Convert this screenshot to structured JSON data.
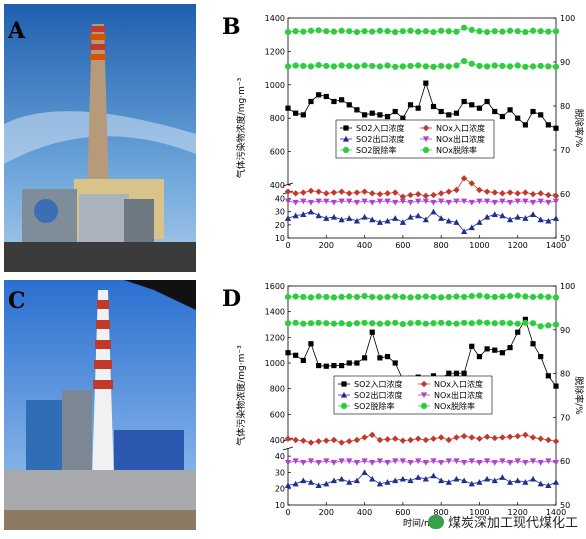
{
  "panels": {
    "A": {
      "letter": "A"
    },
    "B": {
      "letter": "B"
    },
    "C": {
      "letter": "C"
    },
    "D": {
      "letter": "D"
    }
  },
  "colors": {
    "so2_in": "#000000",
    "nox_in": "#c0392b",
    "so2_out": "#1f2f8f",
    "nox_out": "#b040d0",
    "so2_rate": "#2ecc40",
    "nox_rate": "#2ecc40"
  },
  "watermark": "煤炭深加工现代煤化工",
  "chart_data": [
    {
      "panel": "B",
      "type": "scatter",
      "ylabel": "气体污染物浓度/mg·m⁻³",
      "y2label": "脱除率/%",
      "xlabel": "",
      "xlim": [
        0,
        1400
      ],
      "x_ticks": [
        "0",
        "200",
        "400",
        "600",
        "800",
        "1000",
        "1200",
        "1400"
      ],
      "y_upper_ticks": [
        "400",
        "600",
        "800",
        "1000",
        "1200",
        "1400"
      ],
      "y_lower_ticks": [
        "10",
        "20",
        "30",
        "40"
      ],
      "y2_ticks": [
        "50",
        "60",
        "70",
        "80",
        "90",
        "100"
      ],
      "ylim_upper": [
        400,
        1400
      ],
      "ylim_lower": [
        10,
        45
      ],
      "y2lim": [
        50,
        100
      ],
      "legend": [
        "SO2入口浓度",
        "NOx入口浓度",
        "SO2出口浓度",
        "NOx出口浓度",
        "SO2脱除率",
        "NOx脱除率"
      ],
      "series": [
        {
          "name": "SO2入口浓度",
          "axis": "left",
          "marker": "square",
          "x": [
            0,
            40,
            80,
            120,
            160,
            200,
            240,
            280,
            320,
            360,
            400,
            440,
            480,
            520,
            560,
            600,
            640,
            680,
            720,
            760,
            800,
            840,
            880,
            920,
            960,
            1000,
            1040,
            1080,
            1120,
            1160,
            1200,
            1240,
            1280,
            1320,
            1360,
            1400
          ],
          "y": [
            860,
            830,
            820,
            900,
            940,
            930,
            900,
            910,
            880,
            850,
            820,
            830,
            820,
            810,
            840,
            800,
            880,
            860,
            1010,
            870,
            840,
            820,
            830,
            900,
            880,
            860,
            900,
            840,
            810,
            850,
            800,
            760,
            840,
            820,
            760,
            740
          ]
        },
        {
          "name": "NOx入口浓度",
          "axis": "left",
          "marker": "diamond",
          "x": [
            0,
            40,
            80,
            120,
            160,
            200,
            240,
            280,
            320,
            360,
            400,
            440,
            480,
            520,
            560,
            600,
            640,
            680,
            720,
            760,
            800,
            840,
            880,
            920,
            960,
            1000,
            1040,
            1080,
            1120,
            1160,
            1200,
            1240,
            1280,
            1320,
            1360,
            1400
          ],
          "y": [
            360,
            350,
            355,
            365,
            360,
            350,
            355,
            360,
            350,
            355,
            360,
            350,
            345,
            350,
            355,
            330,
            340,
            345,
            335,
            340,
            350,
            360,
            370,
            440,
            410,
            370,
            360,
            355,
            350,
            355,
            350,
            355,
            345,
            350,
            340,
            335
          ]
        },
        {
          "name": "SO2出口浓度",
          "axis": "lower",
          "marker": "triangle-up",
          "x": [
            0,
            40,
            80,
            120,
            160,
            200,
            240,
            280,
            320,
            360,
            400,
            440,
            480,
            520,
            560,
            600,
            640,
            680,
            720,
            760,
            800,
            840,
            880,
            920,
            960,
            1000,
            1040,
            1080,
            1120,
            1160,
            1200,
            1240,
            1280,
            1320,
            1360,
            1400
          ],
          "y": [
            25,
            27,
            28,
            30,
            27,
            25,
            26,
            24,
            25,
            23,
            26,
            24,
            22,
            23,
            25,
            22,
            26,
            27,
            24,
            30,
            25,
            23,
            22,
            15,
            18,
            22,
            26,
            28,
            27,
            24,
            26,
            25,
            28,
            24,
            23,
            25
          ]
        },
        {
          "name": "NOx出口浓度",
          "axis": "lower",
          "marker": "triangle-down",
          "x": [
            0,
            40,
            80,
            120,
            160,
            200,
            240,
            280,
            320,
            360,
            400,
            440,
            480,
            520,
            560,
            600,
            640,
            680,
            720,
            760,
            800,
            840,
            880,
            920,
            960,
            1000,
            1040,
            1080,
            1120,
            1160,
            1200,
            1240,
            1280,
            1320,
            1360,
            1400
          ],
          "y": [
            38,
            37,
            38,
            37,
            38,
            38,
            37,
            38,
            38,
            37,
            38,
            37,
            38,
            38,
            37,
            38,
            37,
            38,
            38,
            37,
            38,
            37,
            38,
            38,
            37,
            38,
            38,
            37,
            38,
            37,
            38,
            38,
            37,
            38,
            37,
            38
          ]
        },
        {
          "name": "SO2脱除率",
          "axis": "right",
          "marker": "circle",
          "x": [
            0,
            40,
            80,
            120,
            160,
            200,
            240,
            280,
            320,
            360,
            400,
            440,
            480,
            520,
            560,
            600,
            640,
            680,
            720,
            760,
            800,
            840,
            880,
            920,
            960,
            1000,
            1040,
            1080,
            1120,
            1160,
            1200,
            1240,
            1280,
            1320,
            1360,
            1400
          ],
          "y": [
            96.8,
            97.0,
            96.9,
            97.1,
            97.2,
            97.0,
            96.9,
            97.1,
            97.0,
            96.8,
            97.0,
            96.9,
            97.1,
            97.0,
            96.8,
            97.0,
            97.1,
            96.9,
            97.0,
            96.8,
            97.1,
            97.0,
            96.9,
            97.8,
            97.3,
            97.0,
            96.8,
            97.0,
            96.9,
            97.1,
            97.0,
            96.8,
            97.1,
            97.0,
            96.9,
            97.0
          ]
        },
        {
          "name": "NOx脱除率",
          "axis": "right",
          "marker": "circle",
          "x": [
            0,
            40,
            80,
            120,
            160,
            200,
            240,
            280,
            320,
            360,
            400,
            440,
            480,
            520,
            560,
            600,
            640,
            680,
            720,
            760,
            800,
            840,
            880,
            920,
            960,
            1000,
            1040,
            1080,
            1120,
            1160,
            1200,
            1240,
            1280,
            1320,
            1360,
            1400
          ],
          "y": [
            89.0,
            89.2,
            89.1,
            89.0,
            89.3,
            89.1,
            89.0,
            89.2,
            89.1,
            89.0,
            89.2,
            89.1,
            89.0,
            89.2,
            88.9,
            89.0,
            89.1,
            89.2,
            89.0,
            88.9,
            89.1,
            89.0,
            89.2,
            90.2,
            89.6,
            89.1,
            89.0,
            89.2,
            89.1,
            89.0,
            89.2,
            88.9,
            89.0,
            89.1,
            89.0,
            88.9
          ]
        }
      ]
    },
    {
      "panel": "D",
      "type": "scatter",
      "ylabel": "气体污染物浓度/mg·m⁻³",
      "y2label": "脱除率/%",
      "xlabel": "时间/min",
      "xlim": [
        0,
        1400
      ],
      "x_ticks": [
        "0",
        "200",
        "400",
        "600",
        "800",
        "1000",
        "1200",
        "1400"
      ],
      "y_upper_ticks": [
        "400",
        "600",
        "800",
        "1000",
        "1200",
        "1400",
        "1600"
      ],
      "y_lower_ticks": [
        "10",
        "20",
        "30",
        "40"
      ],
      "y2_ticks": [
        "50",
        "60",
        "70",
        "80",
        "90",
        "100"
      ],
      "ylim_upper": [
        400,
        1600
      ],
      "ylim_lower": [
        10,
        45
      ],
      "y2lim": [
        50,
        100
      ],
      "legend": [
        "SO2入口浓度",
        "NOx入口浓度",
        "SO2出口浓度",
        "NOx出口浓度",
        "SO2脱除率",
        "NOx脱除率"
      ],
      "series": [
        {
          "name": "SO2入口浓度",
          "axis": "left",
          "marker": "square",
          "x": [
            0,
            40,
            80,
            120,
            160,
            200,
            240,
            280,
            320,
            360,
            400,
            440,
            480,
            520,
            560,
            600,
            640,
            680,
            720,
            760,
            800,
            840,
            880,
            920,
            960,
            1000,
            1040,
            1080,
            1120,
            1160,
            1200,
            1240,
            1280,
            1320,
            1360,
            1400
          ],
          "y": [
            1080,
            1060,
            1020,
            1150,
            980,
            975,
            980,
            980,
            1000,
            1000,
            1040,
            1240,
            1040,
            1050,
            1000,
            870,
            880,
            890,
            880,
            900,
            880,
            920,
            920,
            920,
            1130,
            1050,
            1110,
            1100,
            1080,
            1120,
            1240,
            1340,
            1150,
            1050,
            900,
            820
          ]
        },
        {
          "name": "NOx入口浓度",
          "axis": "left",
          "marker": "diamond",
          "x": [
            0,
            40,
            80,
            120,
            160,
            200,
            240,
            280,
            320,
            360,
            400,
            440,
            480,
            520,
            560,
            600,
            640,
            680,
            720,
            760,
            800,
            840,
            880,
            920,
            960,
            1000,
            1040,
            1080,
            1120,
            1160,
            1200,
            1240,
            1280,
            1320,
            1360,
            1400
          ],
          "y": [
            410,
            400,
            395,
            380,
            390,
            395,
            400,
            380,
            390,
            400,
            420,
            440,
            400,
            405,
            410,
            395,
            400,
            410,
            400,
            410,
            420,
            400,
            420,
            430,
            420,
            410,
            425,
            415,
            420,
            425,
            430,
            440,
            420,
            410,
            400,
            390
          ]
        },
        {
          "name": "SO2出口浓度",
          "axis": "lower",
          "marker": "triangle-up",
          "x": [
            0,
            40,
            80,
            120,
            160,
            200,
            240,
            280,
            320,
            360,
            400,
            440,
            480,
            520,
            560,
            600,
            640,
            680,
            720,
            760,
            800,
            840,
            880,
            920,
            960,
            1000,
            1040,
            1080,
            1120,
            1160,
            1200,
            1240,
            1280,
            1320,
            1360,
            1400
          ],
          "y": [
            22,
            23,
            25,
            24,
            22,
            23,
            25,
            26,
            24,
            25,
            30,
            26,
            23,
            24,
            25,
            26,
            25,
            27,
            26,
            28,
            25,
            24,
            26,
            25,
            23,
            24,
            26,
            25,
            27,
            24,
            25,
            24,
            26,
            23,
            22,
            24
          ]
        },
        {
          "name": "NOx出口浓度",
          "axis": "lower",
          "marker": "triangle-down",
          "x": [
            0,
            40,
            80,
            120,
            160,
            200,
            240,
            280,
            320,
            360,
            400,
            440,
            480,
            520,
            560,
            600,
            640,
            680,
            720,
            760,
            800,
            840,
            880,
            920,
            960,
            1000,
            1040,
            1080,
            1120,
            1160,
            1200,
            1240,
            1280,
            1320,
            1360,
            1400
          ],
          "y": [
            36,
            37,
            36,
            37,
            36,
            37,
            36,
            37,
            37,
            36,
            37,
            36,
            37,
            36,
            37,
            37,
            36,
            37,
            36,
            37,
            36,
            37,
            37,
            36,
            37,
            36,
            37,
            36,
            37,
            36,
            37,
            36,
            37,
            36,
            37,
            36
          ]
        },
        {
          "name": "SO2脱除率",
          "axis": "right",
          "marker": "circle",
          "x": [
            0,
            40,
            80,
            120,
            160,
            200,
            240,
            280,
            320,
            360,
            400,
            440,
            480,
            520,
            560,
            600,
            640,
            680,
            720,
            760,
            800,
            840,
            880,
            920,
            960,
            1000,
            1040,
            1080,
            1120,
            1160,
            1200,
            1240,
            1280,
            1320,
            1360,
            1400
          ],
          "y": [
            97.5,
            97.6,
            97.5,
            97.4,
            97.6,
            97.5,
            97.4,
            97.5,
            97.6,
            97.5,
            97.7,
            97.5,
            97.4,
            97.5,
            97.6,
            97.5,
            97.4,
            97.5,
            97.6,
            97.5,
            97.4,
            97.5,
            97.6,
            97.5,
            97.7,
            97.8,
            97.6,
            97.5,
            97.6,
            97.7,
            97.8,
            97.6,
            97.5,
            97.6,
            97.5,
            97.4
          ]
        },
        {
          "name": "NOx脱除率",
          "axis": "right",
          "marker": "circle",
          "x": [
            0,
            40,
            80,
            120,
            160,
            200,
            240,
            280,
            320,
            360,
            400,
            440,
            480,
            520,
            560,
            600,
            640,
            680,
            720,
            760,
            800,
            840,
            880,
            920,
            960,
            1000,
            1040,
            1080,
            1120,
            1160,
            1200,
            1240,
            1280,
            1320,
            1360,
            1400
          ],
          "y": [
            91.5,
            91.6,
            91.4,
            91.5,
            91.6,
            91.5,
            91.4,
            91.5,
            91.3,
            91.5,
            91.6,
            91.5,
            91.4,
            91.5,
            91.6,
            91.3,
            91.5,
            91.6,
            91.4,
            91.5,
            91.6,
            91.5,
            91.4,
            91.6,
            91.5,
            91.7,
            91.6,
            91.5,
            91.6,
            91.5,
            91.4,
            91.6,
            91.5,
            90.8,
            91.0,
            91.2
          ]
        }
      ]
    }
  ]
}
